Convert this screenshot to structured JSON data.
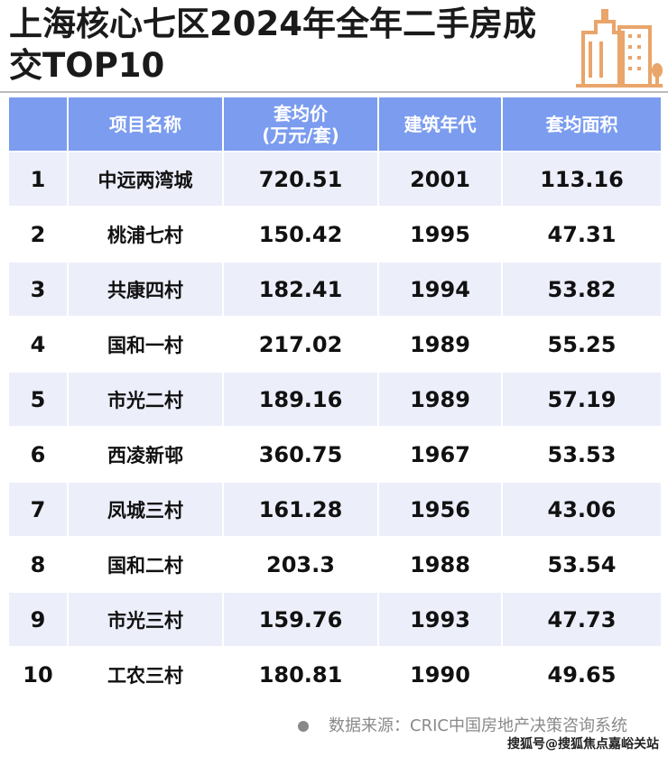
{
  "title": "上海核心七区2024年全年二手房成交TOP10",
  "icon": "buildings-icon",
  "accent_color": "#7b9cef",
  "icon_color": "#e9a56a",
  "table": {
    "headers": [
      "",
      "项目名称",
      "套均价(万元/套)",
      "建筑年代",
      "套均面积"
    ],
    "rows": [
      [
        "1",
        "中远两湾城",
        "720.51",
        "2001",
        "113.16"
      ],
      [
        "2",
        "桃浦七村",
        "150.42",
        "1995",
        "47.31"
      ],
      [
        "3",
        "共康四村",
        "182.41",
        "1994",
        "53.82"
      ],
      [
        "4",
        "国和一村",
        "217.02",
        "1989",
        "55.25"
      ],
      [
        "5",
        "市光二村",
        "189.16",
        "1989",
        "57.19"
      ],
      [
        "6",
        "西凌新邨",
        "360.75",
        "1967",
        "53.53"
      ],
      [
        "7",
        "凤城三村",
        "161.28",
        "1956",
        "43.06"
      ],
      [
        "8",
        "国和二村",
        "203.3",
        "1988",
        "53.54"
      ],
      [
        "9",
        "市光三村",
        "159.76",
        "1993",
        "47.73"
      ],
      [
        "10",
        "工农三村",
        "180.81",
        "1990",
        "49.65"
      ]
    ]
  },
  "source": "数据来源：CRIC中国房地产决策咨询系统",
  "watermark": "搜狐号@搜狐焦点嘉峪关站"
}
